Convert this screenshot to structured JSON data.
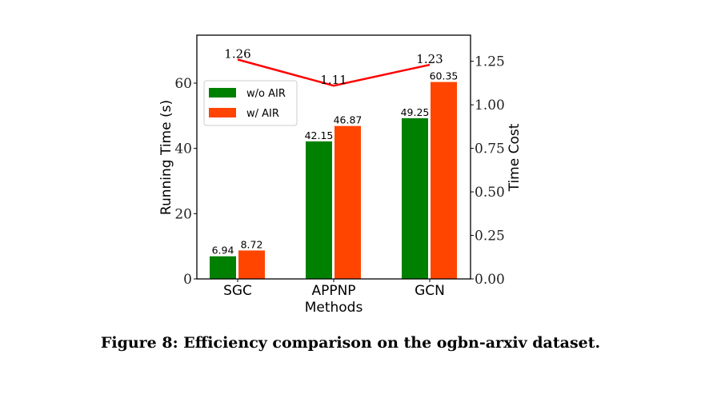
{
  "chart_data": {
    "type": "bar",
    "categories": [
      "SGC",
      "APPNP",
      "GCN"
    ],
    "xlabel": "Methods",
    "ylabel": "Running Time (s)",
    "ylabel_right": "Time Cost",
    "ylim": [
      0,
      74.7
    ],
    "ylim_right": [
      0,
      1.4
    ],
    "yticks": [
      "0",
      "20",
      "40",
      "60"
    ],
    "yticks_right": [
      "0.00",
      "0.25",
      "0.50",
      "0.75",
      "1.00",
      "1.25"
    ],
    "grid": false,
    "legend_position": "upper-left",
    "series": [
      {
        "name": "w/o AIR",
        "type": "bar",
        "axis": "left",
        "color": "#008000",
        "values": [
          6.94,
          42.15,
          49.25
        ],
        "labels": [
          "6.94",
          "42.15",
          "49.25"
        ]
      },
      {
        "name": "w/ AIR",
        "type": "bar",
        "axis": "left",
        "color": "#ff4500",
        "values": [
          8.72,
          46.87,
          60.35
        ],
        "labels": [
          "8.72",
          "46.87",
          "60.35"
        ]
      },
      {
        "type": "line",
        "axis": "right",
        "color": "#ff0000",
        "values": [
          1.26,
          1.11,
          1.23
        ],
        "labels": [
          "1.26",
          "1.11",
          "1.23"
        ]
      }
    ]
  },
  "caption": "Figure 8: Efficiency comparison on the ogbn-arxiv dataset."
}
